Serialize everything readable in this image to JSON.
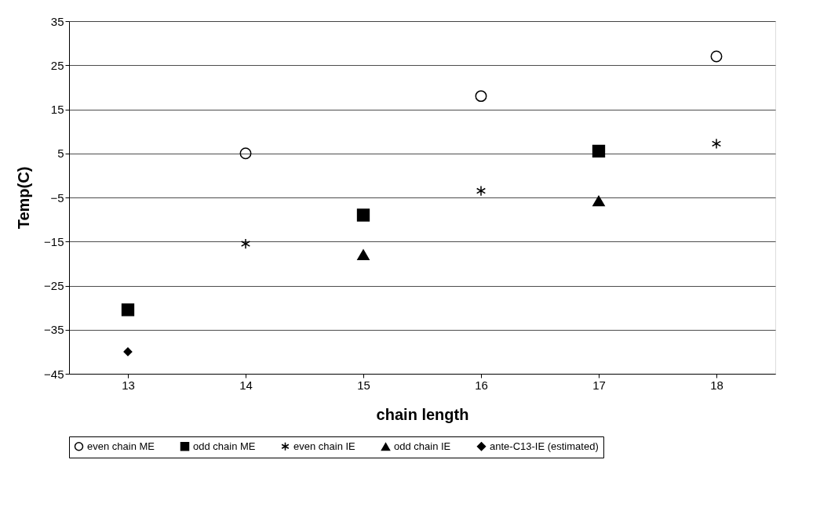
{
  "chart_data": {
    "type": "scatter",
    "xlabel": "chain length",
    "ylabel": "Temp(C)",
    "categories": [
      "13",
      "14",
      "15",
      "16",
      "17",
      "18"
    ],
    "series": [
      {
        "name": "even chain ME",
        "color": "#000000",
        "marker": "circle",
        "values": [
          null,
          5,
          null,
          18,
          null,
          27
        ]
      },
      {
        "name": "odd chain ME",
        "color": "#000000",
        "marker": "square",
        "values": [
          -30.5,
          null,
          -9,
          null,
          5.5,
          null
        ]
      },
      {
        "name": "even chain IE",
        "color": "#000000",
        "marker": "cross",
        "values": [
          null,
          -15.5,
          null,
          -3.5,
          null,
          7.2
        ]
      },
      {
        "name": "odd chain IE",
        "color": "#000000",
        "marker": "triangle",
        "values": [
          null,
          null,
          -18,
          null,
          -5.8,
          null
        ]
      },
      {
        "name": "ante-C13-IE (estimated)",
        "color": "#000000",
        "marker": "diamond",
        "values": [
          -40,
          null,
          null,
          null,
          null,
          null
        ]
      }
    ],
    "ylim": [
      -45,
      35
    ],
    "yticks": [
      -45,
      -35,
      -25,
      -15,
      -5,
      5,
      15,
      25,
      35
    ],
    "grid": "y",
    "legend": "bottom"
  }
}
